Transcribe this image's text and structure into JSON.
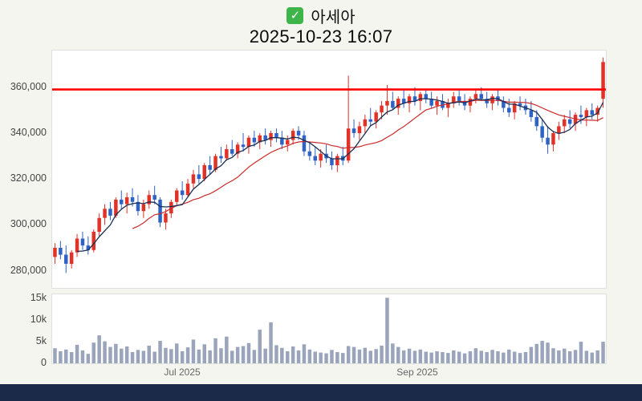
{
  "header": {
    "title": "아세아",
    "datetime": "2025-10-23 16:07"
  },
  "icons": {
    "check_glyph": "✓",
    "check_name": "checkbox-checked-icon"
  },
  "colors": {
    "up": "#e23227",
    "down": "#2e62c6",
    "ma_short": "#1a2e52",
    "ma_long": "#cc2a2a",
    "hline": "#fe0000",
    "volume": "#9aa5bb",
    "footer": "#1b2a48",
    "bg": "#f5f5f0",
    "plot_bg": "#ffffff"
  },
  "chart_data": {
    "type": "candlestick",
    "title": "아세아",
    "subtitle": "2025-10-23 16:07",
    "xlabel": "",
    "ylabel": "",
    "grid": false,
    "legend": false,
    "hline": 359000,
    "ma_periods": {
      "short": 5,
      "long": 15
    },
    "y_axis": {
      "ticks": [
        "360,000",
        "340,000",
        "320,000",
        "300,000",
        "280,000"
      ],
      "tick_values": [
        360000,
        340000,
        320000,
        300000,
        280000
      ],
      "range": [
        272500,
        376000
      ]
    },
    "volume_axis": {
      "ticks": [
        "15k",
        "10k",
        "5k",
        "0"
      ],
      "tick_values": [
        15000,
        10000,
        5000,
        0
      ],
      "max": 16000
    },
    "x_axis": {
      "ticks": [
        {
          "label": "Jul 2025",
          "pos": 0.235
        },
        {
          "label": "Sep 2025",
          "pos": 0.66
        }
      ]
    },
    "candles": [
      [
        286000,
        292000,
        283000,
        290000
      ],
      [
        290000,
        293000,
        285000,
        287000
      ],
      [
        287000,
        291000,
        279000,
        283000
      ],
      [
        283000,
        289000,
        281000,
        288000
      ],
      [
        288000,
        296000,
        286000,
        294000
      ],
      [
        294000,
        297000,
        289000,
        291000
      ],
      [
        291000,
        295000,
        287000,
        289000
      ],
      [
        289000,
        298000,
        288000,
        297000
      ],
      [
        297000,
        305000,
        295000,
        303000
      ],
      [
        303000,
        309000,
        300000,
        307000
      ],
      [
        307000,
        310000,
        302000,
        304000
      ],
      [
        304000,
        312000,
        303000,
        311000
      ],
      [
        311000,
        315000,
        307000,
        309000
      ],
      [
        309000,
        314000,
        305000,
        312000
      ],
      [
        312000,
        316000,
        308000,
        310000
      ],
      [
        310000,
        313000,
        304000,
        306000
      ],
      [
        306000,
        311000,
        303000,
        309000
      ],
      [
        309000,
        315000,
        307000,
        313000
      ],
      [
        313000,
        317000,
        309000,
        311000
      ],
      [
        311000,
        312000,
        299000,
        301000
      ],
      [
        301000,
        307000,
        298000,
        305000
      ],
      [
        305000,
        311000,
        303000,
        310000
      ],
      [
        310000,
        316000,
        308000,
        315000
      ],
      [
        315000,
        319000,
        311000,
        313000
      ],
      [
        313000,
        320000,
        312000,
        318000
      ],
      [
        318000,
        324000,
        316000,
        322000
      ],
      [
        322000,
        326000,
        318000,
        320000
      ],
      [
        320000,
        327000,
        319000,
        326000
      ],
      [
        326000,
        330000,
        322000,
        324000
      ],
      [
        324000,
        331000,
        323000,
        330000
      ],
      [
        330000,
        334000,
        327000,
        329000
      ],
      [
        329000,
        335000,
        328000,
        333000
      ],
      [
        333000,
        337000,
        330000,
        331000
      ],
      [
        331000,
        336000,
        329000,
        335000
      ],
      [
        335000,
        340000,
        332000,
        334000
      ],
      [
        334000,
        339000,
        331000,
        338000
      ],
      [
        338000,
        341000,
        334000,
        336000
      ],
      [
        336000,
        340000,
        333000,
        339000
      ],
      [
        339000,
        342000,
        335000,
        337000
      ],
      [
        337000,
        341000,
        334000,
        340000
      ],
      [
        340000,
        342000,
        336000,
        338000
      ],
      [
        338000,
        341000,
        333000,
        335000
      ],
      [
        335000,
        339000,
        332000,
        337000
      ],
      [
        337000,
        342000,
        335000,
        341000
      ],
      [
        341000,
        343000,
        337000,
        339000
      ],
      [
        339000,
        341000,
        330000,
        332000
      ],
      [
        332000,
        336000,
        328000,
        330000
      ],
      [
        330000,
        334000,
        326000,
        328000
      ],
      [
        328000,
        333000,
        325000,
        331000
      ],
      [
        331000,
        335000,
        327000,
        329000
      ],
      [
        329000,
        332000,
        324000,
        326000
      ],
      [
        326000,
        331000,
        323000,
        330000
      ],
      [
        330000,
        334000,
        326000,
        328000
      ],
      [
        328000,
        365000,
        327000,
        342000
      ],
      [
        342000,
        346000,
        338000,
        340000
      ],
      [
        340000,
        345000,
        337000,
        343000
      ],
      [
        343000,
        348000,
        340000,
        346000
      ],
      [
        346000,
        351000,
        343000,
        345000
      ],
      [
        345000,
        350000,
        342000,
        349000
      ],
      [
        349000,
        354000,
        346000,
        352000
      ],
      [
        352000,
        361000,
        348000,
        354000
      ],
      [
        354000,
        358000,
        350000,
        351000
      ],
      [
        351000,
        356000,
        348000,
        355000
      ],
      [
        355000,
        359000,
        351000,
        353000
      ],
      [
        353000,
        357000,
        349000,
        356000
      ],
      [
        356000,
        360000,
        352000,
        354000
      ],
      [
        354000,
        358000,
        350000,
        357000
      ],
      [
        357000,
        359000,
        353000,
        355000
      ],
      [
        355000,
        358000,
        351000,
        352000
      ],
      [
        352000,
        356000,
        348000,
        354000
      ],
      [
        354000,
        357000,
        350000,
        351000
      ],
      [
        351000,
        355000,
        347000,
        353000
      ],
      [
        353000,
        358000,
        351000,
        356000
      ],
      [
        356000,
        359000,
        352000,
        354000
      ],
      [
        354000,
        357000,
        350000,
        352000
      ],
      [
        352000,
        356000,
        349000,
        355000
      ],
      [
        355000,
        359000,
        353000,
        357000
      ],
      [
        357000,
        360000,
        354000,
        355000
      ],
      [
        355000,
        358000,
        351000,
        353000
      ],
      [
        353000,
        357000,
        350000,
        356000
      ],
      [
        356000,
        359000,
        352000,
        354000
      ],
      [
        354000,
        356000,
        349000,
        351000
      ],
      [
        351000,
        355000,
        347000,
        349000
      ],
      [
        349000,
        354000,
        346000,
        353000
      ],
      [
        353000,
        356000,
        350000,
        352000
      ],
      [
        352000,
        355000,
        348000,
        350000
      ],
      [
        350000,
        354000,
        345000,
        347000
      ],
      [
        347000,
        350000,
        341000,
        343000
      ],
      [
        343000,
        346000,
        336000,
        338000
      ],
      [
        338000,
        343000,
        331000,
        335000
      ],
      [
        335000,
        341000,
        332000,
        340000
      ],
      [
        340000,
        345000,
        337000,
        343000
      ],
      [
        343000,
        348000,
        340000,
        346000
      ],
      [
        346000,
        350000,
        342000,
        344000
      ],
      [
        344000,
        349000,
        341000,
        348000
      ],
      [
        348000,
        352000,
        344000,
        347000
      ],
      [
        347000,
        351000,
        343000,
        350000
      ],
      [
        350000,
        353000,
        346000,
        348000
      ],
      [
        348000,
        352000,
        345000,
        351000
      ],
      [
        355000,
        373000,
        351000,
        371000
      ]
    ],
    "volumes": [
      3500,
      2800,
      3200,
      2600,
      4300,
      3000,
      2200,
      4800,
      6500,
      5100,
      3800,
      4500,
      3400,
      3900,
      2600,
      3100,
      2900,
      4100,
      2700,
      5200,
      3600,
      3300,
      4600,
      2800,
      3700,
      5500,
      3200,
      4400,
      3000,
      5800,
      3500,
      6200,
      2900,
      3800,
      4000,
      4700,
      3100,
      7800,
      3400,
      9500,
      4200,
      3600,
      2800,
      3900,
      3000,
      4400,
      3200,
      2700,
      2500,
      2300,
      3100,
      2600,
      2400,
      4000,
      3800,
      3200,
      3600,
      2900,
      3300,
      4100,
      15200,
      4600,
      3800,
      3000,
      3400,
      2900,
      3200,
      2700,
      2500,
      2800,
      2600,
      2400,
      3000,
      2700,
      2300,
      2800,
      3500,
      2900,
      2600,
      3100,
      2800,
      2500,
      3200,
      2700,
      2400,
      2600,
      3800,
      4500,
      5200,
      4800,
      3500,
      3000,
      3400,
      2800,
      3100,
      5000,
      2900,
      2500,
      3000,
      5000
    ]
  }
}
